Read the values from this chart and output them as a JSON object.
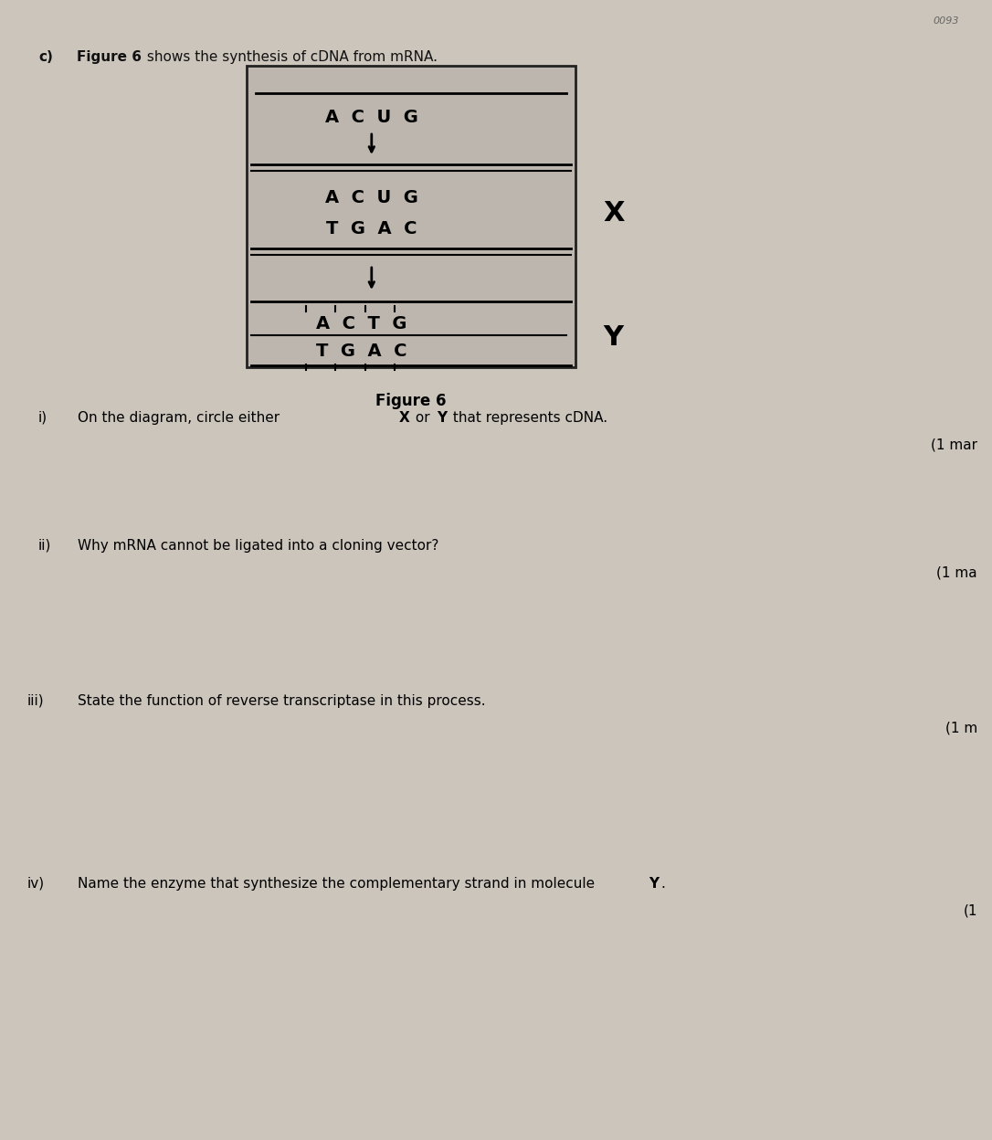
{
  "bg_color": "#ccc5bc",
  "box_bg": "#c0b9b1",
  "title_bold": "Figure 6",
  "title_rest": " shows the synthesis of cDNA from mRNA.",
  "label_c": "c)",
  "figure_label": "Figure 6",
  "mrna_row": "A  C  U  G",
  "hybrid_row1": "A  C  U  G",
  "hybrid_row2": "T  G  A  C",
  "dna_row1": "A  C  T  G",
  "dna_row2": "T  G  A  C",
  "label_x": "X",
  "label_y": "Y",
  "corner_text": "0093",
  "q_i_pre": "On the diagram, circle either ",
  "q_i_x": "X",
  "q_i_mid": " or ",
  "q_i_y": "Y",
  "q_i_post": " that represents cDNA.",
  "q_i_mark": "(1 mar",
  "q_ii_text": "Why mRNA cannot be ligated into a cloning vector?",
  "q_ii_mark": "(1 ma",
  "q_iii_text": "State the function of reverse transcriptase in this process.",
  "q_iii_mark": "(1 m",
  "q_iv_pre": "Name the enzyme that synthesize the complementary strand in molecule ",
  "q_iv_y": "Y",
  "q_iv_period": ".",
  "q_iv_mark": "(1"
}
